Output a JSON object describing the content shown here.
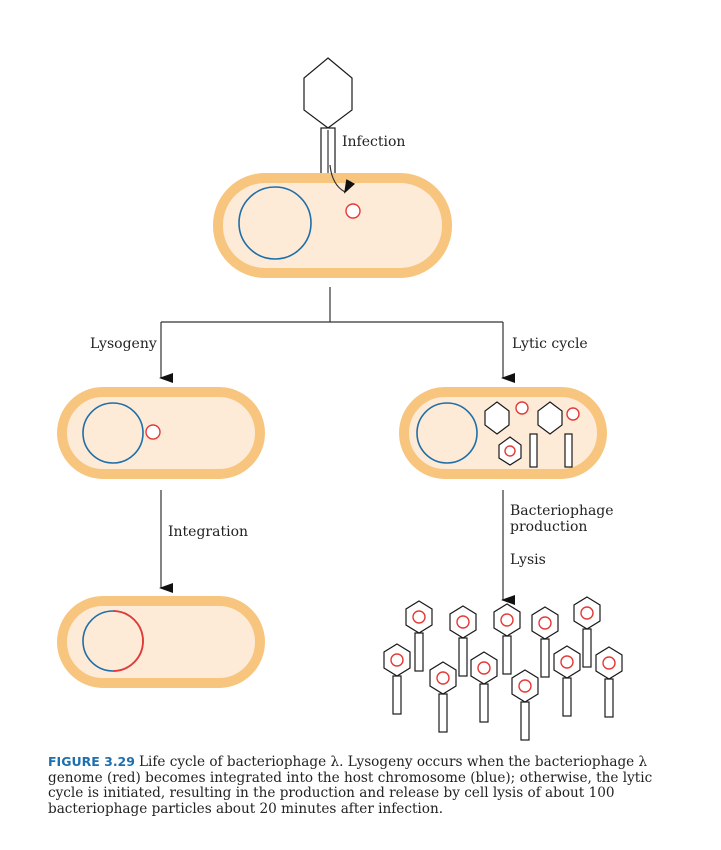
{
  "labels": {
    "infection": "Infection",
    "lysogeny": "Lysogeny",
    "lytic_cycle": "Lytic cycle",
    "integration": "Integration",
    "phage_production_1": "Bacteriophage",
    "phage_production_2": "production",
    "lysis": "Lysis"
  },
  "caption": {
    "figure_label": "FIGURE 3.29",
    "text": "Life cycle of bacteriophage λ. Lysogeny occurs when the bacteriophage λ genome (red) becomes integrated into the host chromosome (blue); otherwise, the lytic cycle is initiated, resulting in the production and release by cell lysis of about 100 bacteriophage particles about 20 minutes after infection."
  },
  "colors": {
    "cell_wall": "#f7c57e",
    "cytoplasm": "#fdebd8",
    "host_chromosome": "#1e6ea8",
    "phage_genome": "#e53935"
  }
}
